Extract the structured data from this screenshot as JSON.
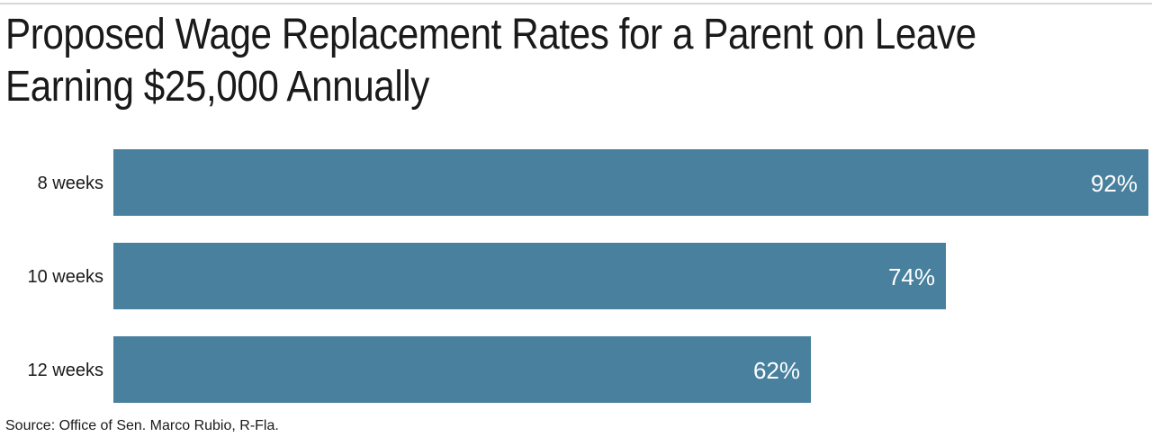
{
  "header": {
    "title_line1": "Proposed Wage Replacement Rates for a Parent on Leave",
    "title_line2": "Earning $25,000 Annually"
  },
  "source": "Source: Office of Sen. Marco Rubio, R-Fla.",
  "colors": {
    "bar": "#48809e",
    "value_text": "#ffffff",
    "text": "#1a1a1a"
  },
  "chart_data": {
    "type": "bar",
    "orientation": "horizontal",
    "title": "Proposed Wage Replacement Rates for a Parent on Leave Earning $25,000 Annually",
    "categories": [
      "8 weeks",
      "10 weeks",
      "12 weeks"
    ],
    "values": [
      92,
      74,
      62
    ],
    "value_labels": [
      "92%",
      "74%",
      "62%"
    ],
    "xlabel": "",
    "ylabel": "",
    "xlim": [
      0,
      92
    ],
    "grid": false,
    "legend": "none"
  }
}
